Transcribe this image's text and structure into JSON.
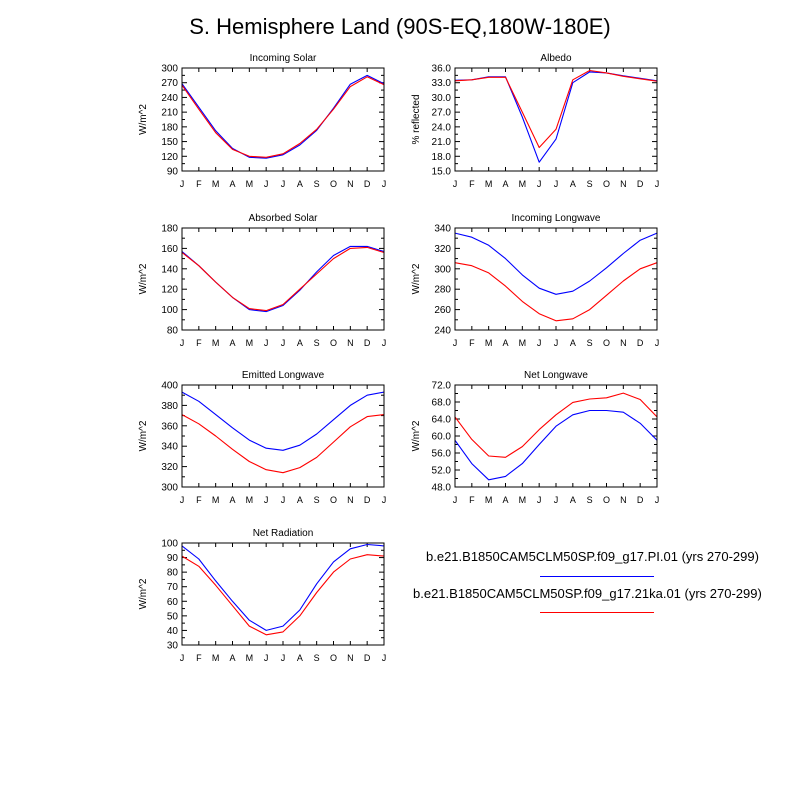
{
  "figure_title": "S. Hemisphere Land (90S-EQ,180W-180E)",
  "colors": {
    "blue_series": "#0000ff",
    "red_series": "#ff0000",
    "axis": "#000000"
  },
  "legend": [
    {
      "label": "b.e21.B1850CAM5CLM50SP.f09_g17.PI.01 (yrs 270-299)",
      "color": "#0000ff"
    },
    {
      "label": "b.e21.B1850CAM5CLM50SP.f09_g17.21ka.01 (yrs 270-299)",
      "color": "#ff0000"
    }
  ],
  "chart_data": [
    {
      "type": "line",
      "title": "Incoming Solar",
      "ylabel": "W/m^2",
      "xlabel": "",
      "categories": [
        "J",
        "F",
        "M",
        "A",
        "M",
        "J",
        "J",
        "A",
        "S",
        "O",
        "N",
        "D",
        "J"
      ],
      "ylim": [
        90,
        300
      ],
      "yticks": [
        90,
        120,
        150,
        180,
        210,
        240,
        270,
        300
      ],
      "ytick_labels": [
        "90",
        "120",
        "150",
        "180",
        "210",
        "240",
        "270",
        "300"
      ],
      "series": [
        {
          "name": "PI",
          "color": "#0000ff",
          "values": [
            268,
            220,
            172,
            136,
            118,
            116,
            123,
            143,
            173,
            218,
            267,
            285,
            268
          ]
        },
        {
          "name": "21ka",
          "color": "#ff0000",
          "values": [
            265,
            216,
            168,
            134,
            120,
            118,
            125,
            146,
            175,
            216,
            262,
            282,
            266
          ]
        }
      ]
    },
    {
      "type": "line",
      "title": "Albedo",
      "ylabel": "% reflected",
      "xlabel": "",
      "categories": [
        "J",
        "F",
        "M",
        "A",
        "M",
        "J",
        "J",
        "A",
        "S",
        "O",
        "N",
        "D",
        "J"
      ],
      "ylim": [
        15,
        36
      ],
      "yticks": [
        15,
        18,
        21,
        24,
        27,
        30,
        33,
        36
      ],
      "ytick_labels": [
        "15.0",
        "18.0",
        "21.0",
        "24.0",
        "27.0",
        "30.0",
        "33.0",
        "36.0"
      ],
      "series": [
        {
          "name": "PI",
          "color": "#0000ff",
          "values": [
            33.5,
            33.6,
            34.2,
            34.2,
            26.0,
            16.8,
            21.5,
            33.0,
            35.2,
            35.0,
            34.4,
            33.9,
            33.4
          ]
        },
        {
          "name": "21ka",
          "color": "#ff0000",
          "values": [
            33.4,
            33.6,
            34.1,
            34.1,
            27.0,
            19.8,
            23.5,
            33.6,
            35.5,
            35.0,
            34.3,
            33.8,
            33.3
          ]
        }
      ]
    },
    {
      "type": "line",
      "title": "Absorbed Solar",
      "ylabel": "W/m^2",
      "xlabel": "",
      "categories": [
        "J",
        "F",
        "M",
        "A",
        "M",
        "J",
        "J",
        "A",
        "S",
        "O",
        "N",
        "D",
        "J"
      ],
      "ylim": [
        80,
        180
      ],
      "yticks": [
        80,
        100,
        120,
        140,
        160,
        180
      ],
      "ytick_labels": [
        "80",
        "100",
        "120",
        "140",
        "160",
        "180"
      ],
      "series": [
        {
          "name": "PI",
          "color": "#0000ff",
          "values": [
            157,
            143,
            127,
            112,
            100,
            98,
            104,
            119,
            137,
            153,
            162,
            162,
            157
          ]
        },
        {
          "name": "21ka",
          "color": "#ff0000",
          "values": [
            156,
            143,
            127,
            112,
            101,
            99,
            105,
            120,
            135,
            150,
            160,
            161,
            156
          ]
        }
      ]
    },
    {
      "type": "line",
      "title": "Incoming Longwave",
      "ylabel": "W/m^2",
      "xlabel": "",
      "categories": [
        "J",
        "F",
        "M",
        "A",
        "M",
        "J",
        "J",
        "A",
        "S",
        "O",
        "N",
        "D",
        "J"
      ],
      "ylim": [
        240,
        340
      ],
      "yticks": [
        240,
        260,
        280,
        300,
        320,
        340
      ],
      "ytick_labels": [
        "240",
        "260",
        "280",
        "300",
        "320",
        "340"
      ],
      "series": [
        {
          "name": "PI",
          "color": "#0000ff",
          "values": [
            335,
            331,
            323,
            310,
            294,
            281,
            275,
            278,
            288,
            301,
            315,
            328,
            335
          ]
        },
        {
          "name": "21ka",
          "color": "#ff0000",
          "values": [
            306,
            303,
            296,
            283,
            268,
            256,
            249,
            251,
            260,
            274,
            288,
            300,
            306
          ]
        }
      ]
    },
    {
      "type": "line",
      "title": "Emitted Longwave",
      "ylabel": "W/m^2",
      "xlabel": "",
      "categories": [
        "J",
        "F",
        "M",
        "A",
        "M",
        "J",
        "J",
        "A",
        "S",
        "O",
        "N",
        "D",
        "J"
      ],
      "ylim": [
        300,
        400
      ],
      "yticks": [
        300,
        320,
        340,
        360,
        380,
        400
      ],
      "ytick_labels": [
        "300",
        "320",
        "340",
        "360",
        "380",
        "400"
      ],
      "series": [
        {
          "name": "PI",
          "color": "#0000ff",
          "values": [
            393,
            384,
            371,
            358,
            346,
            338,
            336,
            341,
            352,
            366,
            380,
            390,
            393
          ]
        },
        {
          "name": "21ka",
          "color": "#ff0000",
          "values": [
            371,
            362,
            350,
            337,
            325,
            317,
            314,
            319,
            329,
            344,
            359,
            369,
            371
          ]
        }
      ]
    },
    {
      "type": "line",
      "title": "Net Longwave",
      "ylabel": "W/m^2",
      "xlabel": "",
      "categories": [
        "J",
        "F",
        "M",
        "A",
        "M",
        "J",
        "J",
        "A",
        "S",
        "O",
        "N",
        "D",
        "J"
      ],
      "ylim": [
        48,
        72
      ],
      "yticks": [
        48,
        52,
        56,
        60,
        64,
        68,
        72
      ],
      "ytick_labels": [
        "48.0",
        "52.0",
        "56.0",
        "60.0",
        "64.0",
        "68.0",
        "72.0"
      ],
      "series": [
        {
          "name": "PI",
          "color": "#0000ff",
          "values": [
            59.0,
            53.5,
            49.7,
            50.5,
            53.5,
            58.0,
            62.3,
            65.0,
            66.0,
            66.0,
            65.6,
            63.0,
            59.0
          ]
        },
        {
          "name": "21ka",
          "color": "#ff0000",
          "values": [
            64.5,
            59.2,
            55.3,
            55.0,
            57.5,
            61.5,
            65.0,
            67.9,
            68.7,
            69.0,
            70.1,
            68.6,
            64.5
          ]
        }
      ]
    },
    {
      "type": "line",
      "title": "Net Radiation",
      "ylabel": "W/m^2",
      "xlabel": "",
      "categories": [
        "J",
        "F",
        "M",
        "A",
        "M",
        "J",
        "J",
        "A",
        "S",
        "O",
        "N",
        "D",
        "J"
      ],
      "ylim": [
        30,
        100
      ],
      "yticks": [
        30,
        40,
        50,
        60,
        70,
        80,
        90,
        100
      ],
      "ytick_labels": [
        "30",
        "40",
        "50",
        "60",
        "70",
        "80",
        "90",
        "100"
      ],
      "series": [
        {
          "name": "PI",
          "color": "#0000ff",
          "values": [
            98,
            89,
            74,
            60,
            47,
            40,
            43,
            54,
            72,
            87,
            96,
            99,
            98
          ]
        },
        {
          "name": "21ka",
          "color": "#ff0000",
          "values": [
            91,
            84,
            71,
            57,
            43,
            37,
            39,
            50,
            66,
            80,
            89,
            92,
            91
          ]
        }
      ]
    }
  ]
}
